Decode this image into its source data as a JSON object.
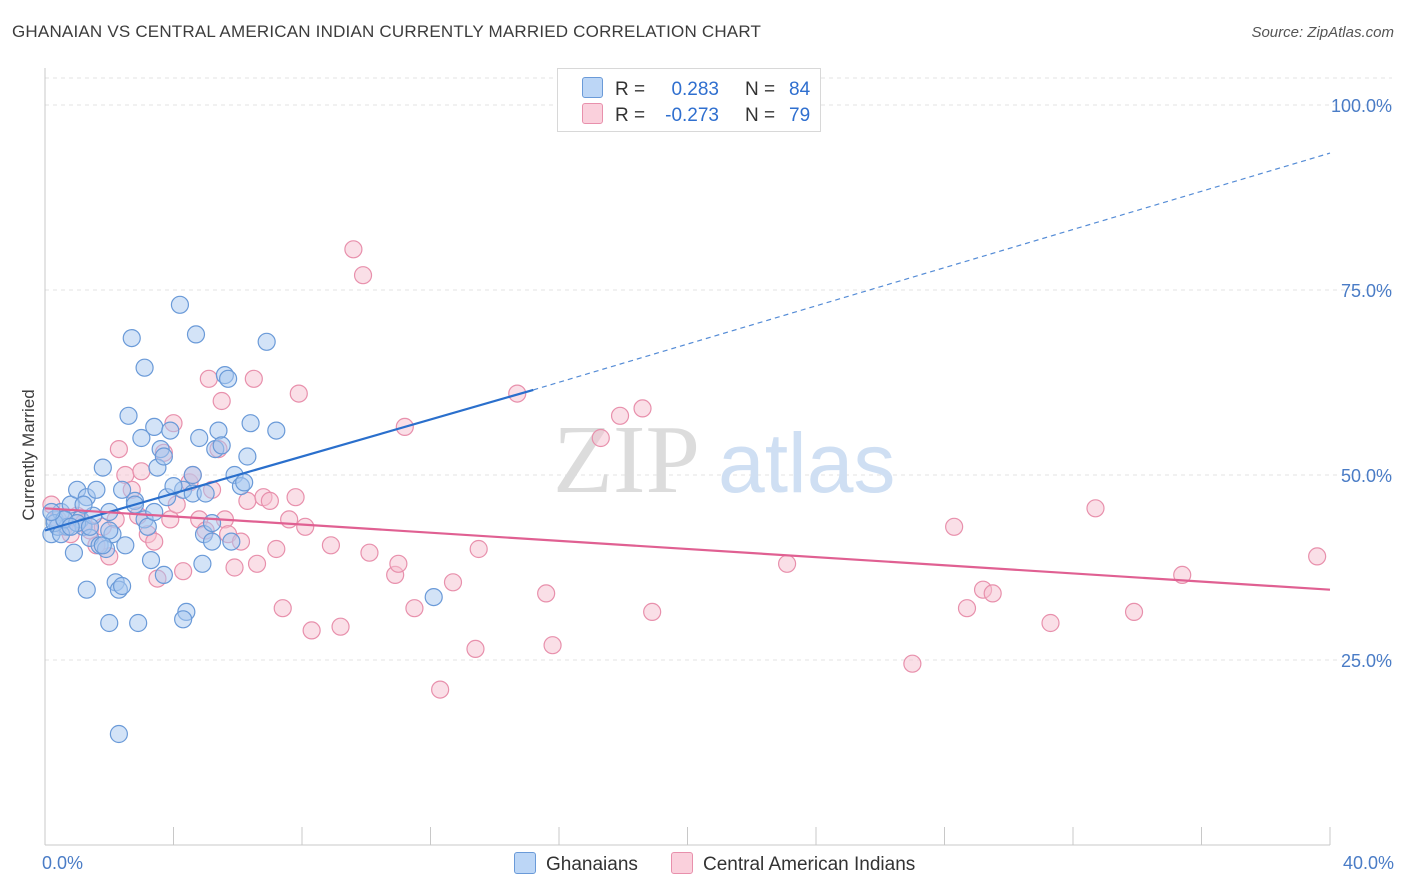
{
  "header": {
    "title": "GHANAIAN VS CENTRAL AMERICAN INDIAN CURRENTLY MARRIED CORRELATION CHART",
    "source": "Source: ZipAtlas.com"
  },
  "watermark": {
    "part1": "ZIP",
    "part2": "atlas"
  },
  "legend": {
    "r_label": "R =",
    "n_label": "N =",
    "rows": [
      {
        "r": "0.283",
        "n": "84",
        "color": "#a8c8f0",
        "stroke": "#6a9ad8"
      },
      {
        "r": "-0.273",
        "n": "79",
        "color": "#f6c0d0",
        "stroke": "#e890ac"
      }
    ]
  },
  "bottom_legend": [
    "Ghanaians",
    "Central American Indians"
  ],
  "chart_data": {
    "type": "scatter",
    "title": "GHANAIAN VS CENTRAL AMERICAN INDIAN CURRENTLY MARRIED CORRELATION CHART",
    "ylabel": "Currently Married",
    "xlim": [
      0,
      40
    ],
    "ylim": [
      0,
      105
    ],
    "x_tick_labels": [
      "0.0%",
      "40.0%"
    ],
    "y_tick_labels": [
      "25.0%",
      "50.0%",
      "75.0%",
      "100.0%"
    ],
    "y_ticks": [
      25,
      50,
      75,
      100
    ],
    "grid": true,
    "legend_position": "top-center",
    "series": [
      {
        "name": "Ghanaians",
        "color": "#6a9ad8",
        "fill": "#a8c8f0",
        "trend_color": "#2a6fcc",
        "trend": {
          "x0": 0,
          "y0": 42.5,
          "x1": 15.2,
          "y1": 61.5,
          "dash_to_x": 40,
          "dash_to_y": 93.5
        },
        "points": [
          [
            0.2,
            42
          ],
          [
            0.3,
            44
          ],
          [
            0.4,
            43
          ],
          [
            0.5,
            45
          ],
          [
            0.6,
            44
          ],
          [
            0.7,
            43
          ],
          [
            0.8,
            46
          ],
          [
            0.9,
            39.5
          ],
          [
            1.0,
            48
          ],
          [
            1.1,
            44
          ],
          [
            1.2,
            43
          ],
          [
            1.3,
            47
          ],
          [
            1.4,
            41.5
          ],
          [
            1.5,
            44.5
          ],
          [
            1.6,
            48
          ],
          [
            1.7,
            40.5
          ],
          [
            1.8,
            51
          ],
          [
            1.9,
            40
          ],
          [
            2.0,
            45
          ],
          [
            2.1,
            42
          ],
          [
            1.3,
            34.5
          ],
          [
            2.0,
            30
          ],
          [
            2.2,
            35.5
          ],
          [
            2.3,
            34.5
          ],
          [
            2.4,
            35
          ],
          [
            2.5,
            40.5
          ],
          [
            2.6,
            58
          ],
          [
            2.7,
            68.5
          ],
          [
            2.8,
            46.5
          ],
          [
            2.9,
            30
          ],
          [
            3.0,
            55
          ],
          [
            3.1,
            44
          ],
          [
            3.2,
            43
          ],
          [
            3.1,
            64.5
          ],
          [
            3.4,
            56.5
          ],
          [
            3.5,
            51
          ],
          [
            3.6,
            53.5
          ],
          [
            3.7,
            52.5
          ],
          [
            3.8,
            47
          ],
          [
            3.9,
            56
          ],
          [
            3.7,
            36.5
          ],
          [
            4.2,
            73
          ],
          [
            4.3,
            48
          ],
          [
            4.4,
            31.5
          ],
          [
            4.6,
            47.5
          ],
          [
            4.7,
            69
          ],
          [
            4.8,
            55
          ],
          [
            4.9,
            38
          ],
          [
            4.95,
            42
          ],
          [
            5.0,
            47.5
          ],
          [
            5.2,
            43.5
          ],
          [
            5.3,
            53.5
          ],
          [
            5.4,
            56
          ],
          [
            5.5,
            54
          ],
          [
            5.6,
            63.5
          ],
          [
            5.7,
            63
          ],
          [
            5.8,
            41
          ],
          [
            5.9,
            50
          ],
          [
            6.1,
            48.5
          ],
          [
            6.2,
            49
          ],
          [
            6.3,
            52.5
          ],
          [
            6.4,
            57
          ],
          [
            6.9,
            68
          ],
          [
            7.2,
            56
          ],
          [
            12.1,
            33.5
          ],
          [
            2.3,
            15
          ],
          [
            4.3,
            30.5
          ],
          [
            0.3,
            43.5
          ],
          [
            0.5,
            42
          ],
          [
            0.6,
            44
          ],
          [
            1.0,
            43.5
          ],
          [
            1.4,
            43
          ],
          [
            1.8,
            40.5
          ],
          [
            2.4,
            48
          ],
          [
            2.8,
            46
          ],
          [
            3.4,
            45
          ],
          [
            5.2,
            41
          ],
          [
            0.2,
            45
          ],
          [
            0.8,
            43
          ],
          [
            1.2,
            46
          ],
          [
            2.0,
            42.5
          ],
          [
            3.3,
            38.5
          ],
          [
            4.0,
            48.5
          ],
          [
            4.6,
            50
          ]
        ]
      },
      {
        "name": "Central American Indians",
        "color": "#e890ac",
        "fill": "#f6c0d0",
        "trend_color": "#e06092",
        "trend": {
          "x0": 0,
          "y0": 45.5,
          "x1": 40,
          "y1": 34.5
        },
        "points": [
          [
            0.2,
            46
          ],
          [
            0.4,
            44
          ],
          [
            0.6,
            43
          ],
          [
            0.8,
            42
          ],
          [
            1.0,
            44.5
          ],
          [
            1.2,
            43.5
          ],
          [
            1.4,
            42.5
          ],
          [
            1.6,
            40.5
          ],
          [
            1.8,
            43
          ],
          [
            2.0,
            39
          ],
          [
            2.2,
            44
          ],
          [
            2.3,
            53.5
          ],
          [
            2.5,
            50
          ],
          [
            2.7,
            48
          ],
          [
            2.9,
            44.5
          ],
          [
            3.0,
            50.5
          ],
          [
            3.2,
            42
          ],
          [
            3.4,
            41
          ],
          [
            3.5,
            36
          ],
          [
            3.7,
            53
          ],
          [
            3.9,
            44
          ],
          [
            4.0,
            57
          ],
          [
            4.1,
            46
          ],
          [
            4.3,
            37
          ],
          [
            4.5,
            49
          ],
          [
            4.6,
            50
          ],
          [
            4.8,
            44
          ],
          [
            5.0,
            42.5
          ],
          [
            5.1,
            63
          ],
          [
            5.2,
            48
          ],
          [
            5.4,
            53.5
          ],
          [
            5.5,
            60
          ],
          [
            5.6,
            44
          ],
          [
            5.7,
            42
          ],
          [
            5.9,
            37.5
          ],
          [
            6.1,
            41
          ],
          [
            6.3,
            46.5
          ],
          [
            6.5,
            63
          ],
          [
            6.6,
            38
          ],
          [
            6.8,
            47
          ],
          [
            7.0,
            46.5
          ],
          [
            7.2,
            40
          ],
          [
            7.4,
            32
          ],
          [
            7.6,
            44
          ],
          [
            7.8,
            47
          ],
          [
            7.9,
            61
          ],
          [
            8.1,
            43
          ],
          [
            8.3,
            29
          ],
          [
            8.9,
            40.5
          ],
          [
            9.2,
            29.5
          ],
          [
            9.6,
            80.5
          ],
          [
            9.9,
            77
          ],
          [
            10.1,
            39.5
          ],
          [
            10.9,
            36.5
          ],
          [
            11.0,
            38
          ],
          [
            11.2,
            56.5
          ],
          [
            11.5,
            32
          ],
          [
            12.3,
            21
          ],
          [
            12.7,
            35.5
          ],
          [
            13.4,
            26.5
          ],
          [
            13.5,
            40
          ],
          [
            14.7,
            61
          ],
          [
            15.6,
            34
          ],
          [
            15.8,
            27
          ],
          [
            17.3,
            55
          ],
          [
            17.9,
            58
          ],
          [
            18.6,
            59
          ],
          [
            18.9,
            31.5
          ],
          [
            23.1,
            38
          ],
          [
            27.0,
            24.5
          ],
          [
            28.3,
            43
          ],
          [
            28.7,
            32
          ],
          [
            29.2,
            34.5
          ],
          [
            29.5,
            34
          ],
          [
            31.3,
            30
          ],
          [
            32.7,
            45.5
          ],
          [
            33.9,
            31.5
          ],
          [
            35.4,
            36.5
          ],
          [
            39.6,
            39
          ]
        ]
      }
    ]
  }
}
